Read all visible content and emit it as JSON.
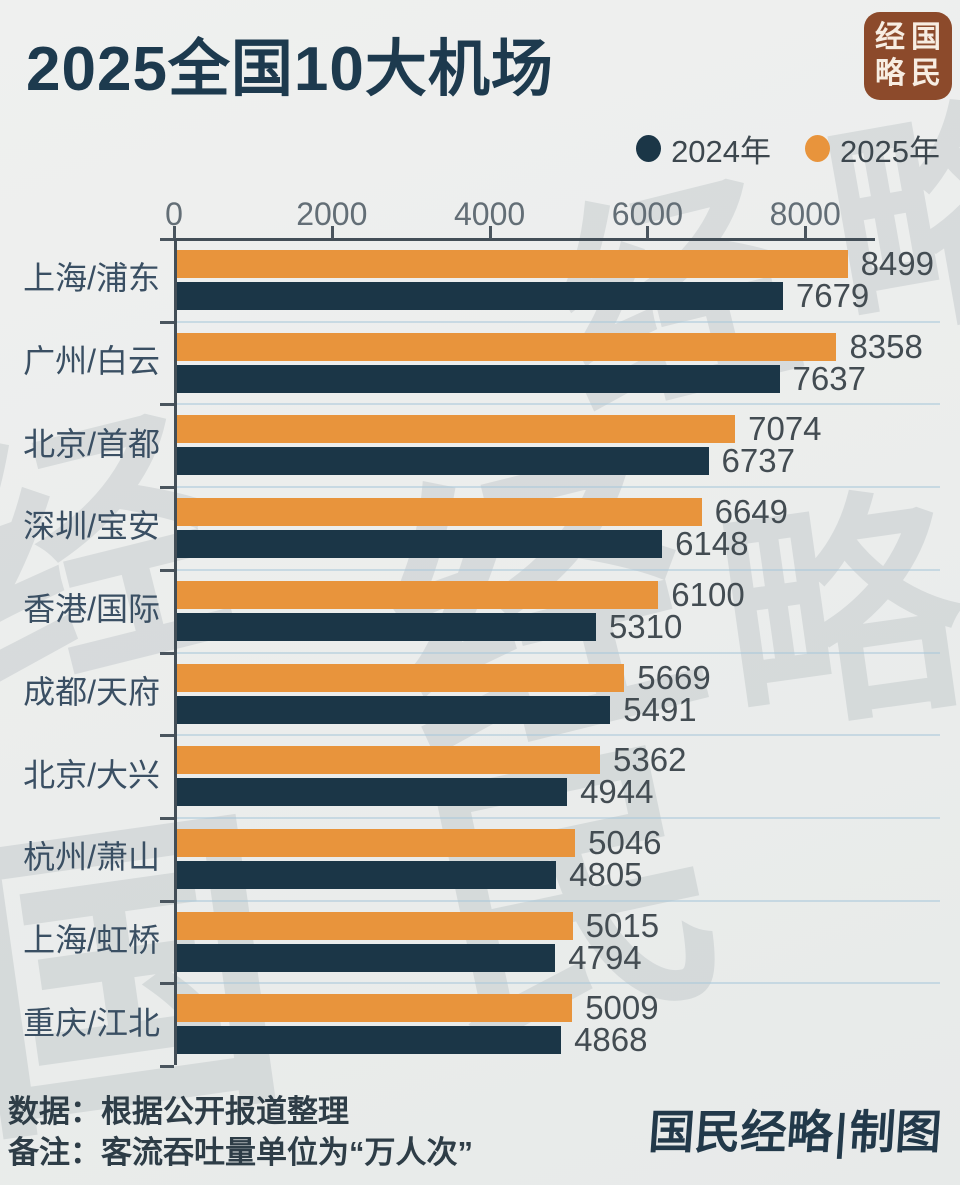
{
  "title": "2025全国10大机场",
  "logo": {
    "name": "国民经略",
    "grid_chars": [
      "经",
      "国",
      "略",
      "民"
    ],
    "bg_color": "#8c4a2b",
    "text_color": "#f7ede2"
  },
  "legend": {
    "items": [
      {
        "label": "2024年",
        "color": "#1b3647"
      },
      {
        "label": "2025年",
        "color": "#e8943c"
      }
    ]
  },
  "chart_data": {
    "type": "bar",
    "orientation": "horizontal",
    "title": "2025全国10大机场",
    "categories": [
      "上海/浦东",
      "广州/白云",
      "北京/首都",
      "深圳/宝安",
      "香港/国际",
      "成都/天府",
      "北京/大兴",
      "杭州/萧山",
      "上海/虹桥",
      "重庆/江北"
    ],
    "series": [
      {
        "name": "2025年",
        "color": "#e8943c",
        "values": [
          8499,
          8358,
          7074,
          6649,
          6100,
          5669,
          5362,
          5046,
          5015,
          5009
        ]
      },
      {
        "name": "2024年",
        "color": "#1b3647",
        "values": [
          7679,
          7637,
          6737,
          6148,
          5310,
          5491,
          4944,
          4805,
          4794,
          4868
        ]
      }
    ],
    "xlabel": "",
    "ylabel": "",
    "xlim": [
      0,
      8900
    ],
    "x_ticks": [
      0,
      2000,
      4000,
      6000,
      8000
    ],
    "grid": "category separators only",
    "legend_position": "top-right",
    "unit": "万人次"
  },
  "footer": {
    "line1": "数据：根据公开报道整理",
    "line2": "备注：客流吞吐量单位为“万人次”",
    "signature": "国民经略|制图"
  },
  "watermark": {
    "text": "国民经略",
    "chars": [
      "经",
      "国",
      "民",
      "经",
      "略",
      "经",
      "略"
    ]
  },
  "colors": {
    "background": "#ecedec",
    "title": "#1d3a4e",
    "bar_2025": "#e8943c",
    "bar_2024": "#1b3647",
    "axis": "#434e57",
    "tick_label": "#636e76",
    "value_label": "#434c52",
    "category_label": "#3a4f63",
    "separator": "#aac8da",
    "footer_text": "#2e3d47"
  }
}
